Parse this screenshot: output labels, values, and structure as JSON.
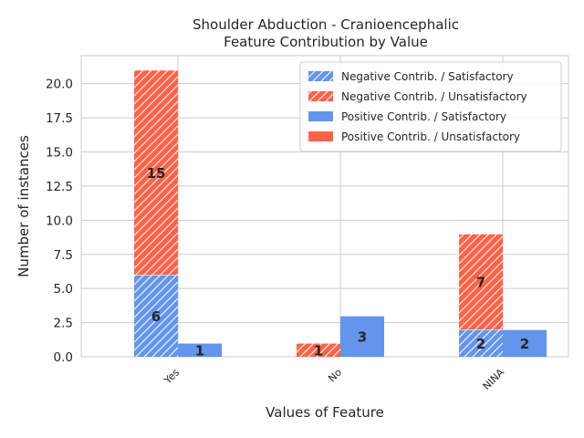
{
  "chart_data": {
    "type": "bar",
    "title_lines": [
      "Shoulder Abduction - Cranioencephalic",
      "Feature Contribution by Value"
    ],
    "xlabel": "Values of Feature",
    "ylabel": "Number of instances",
    "categories": [
      "Yes",
      "No",
      "NINA"
    ],
    "ylim": [
      0,
      22.05
    ],
    "yticks": [
      "0.0",
      "2.5",
      "5.0",
      "7.5",
      "10.0",
      "12.5",
      "15.0",
      "17.5",
      "20.0"
    ],
    "ytick_values": [
      0,
      2.5,
      5,
      7.5,
      10,
      12.5,
      15,
      17.5,
      20
    ],
    "grid": true,
    "legend_position": "top-right",
    "colors": {
      "satisfactory": "#6495ED",
      "unsatisfactory": "#FF6347"
    },
    "series": [
      {
        "name": "Negative Contrib. / Satisfactory",
        "group": "negative",
        "class": "satisfactory",
        "hatch": true,
        "values": [
          6,
          0,
          2
        ]
      },
      {
        "name": "Negative Contrib. / Unsatisfactory",
        "group": "negative",
        "class": "unsatisfactory",
        "hatch": true,
        "values": [
          15,
          1,
          7
        ]
      },
      {
        "name": "Positive Contrib. / Satisfactory",
        "group": "positive",
        "class": "satisfactory",
        "hatch": false,
        "values": [
          1,
          3,
          2
        ]
      },
      {
        "name": "Positive Contrib. / Unsatisfactory",
        "group": "positive",
        "class": "unsatisfactory",
        "hatch": false,
        "values": [
          0,
          0,
          0
        ]
      }
    ],
    "data_labels": [
      {
        "series": 1,
        "category": 0,
        "text": "15"
      },
      {
        "series": 0,
        "category": 0,
        "text": "6"
      },
      {
        "series": 2,
        "category": 0,
        "text": "1"
      },
      {
        "series": 1,
        "category": 1,
        "text": "1"
      },
      {
        "series": 2,
        "category": 1,
        "text": "3"
      },
      {
        "series": 1,
        "category": 2,
        "text": "7"
      },
      {
        "series": 0,
        "category": 2,
        "text": "2"
      },
      {
        "series": 2,
        "category": 2,
        "text": "2"
      }
    ]
  }
}
